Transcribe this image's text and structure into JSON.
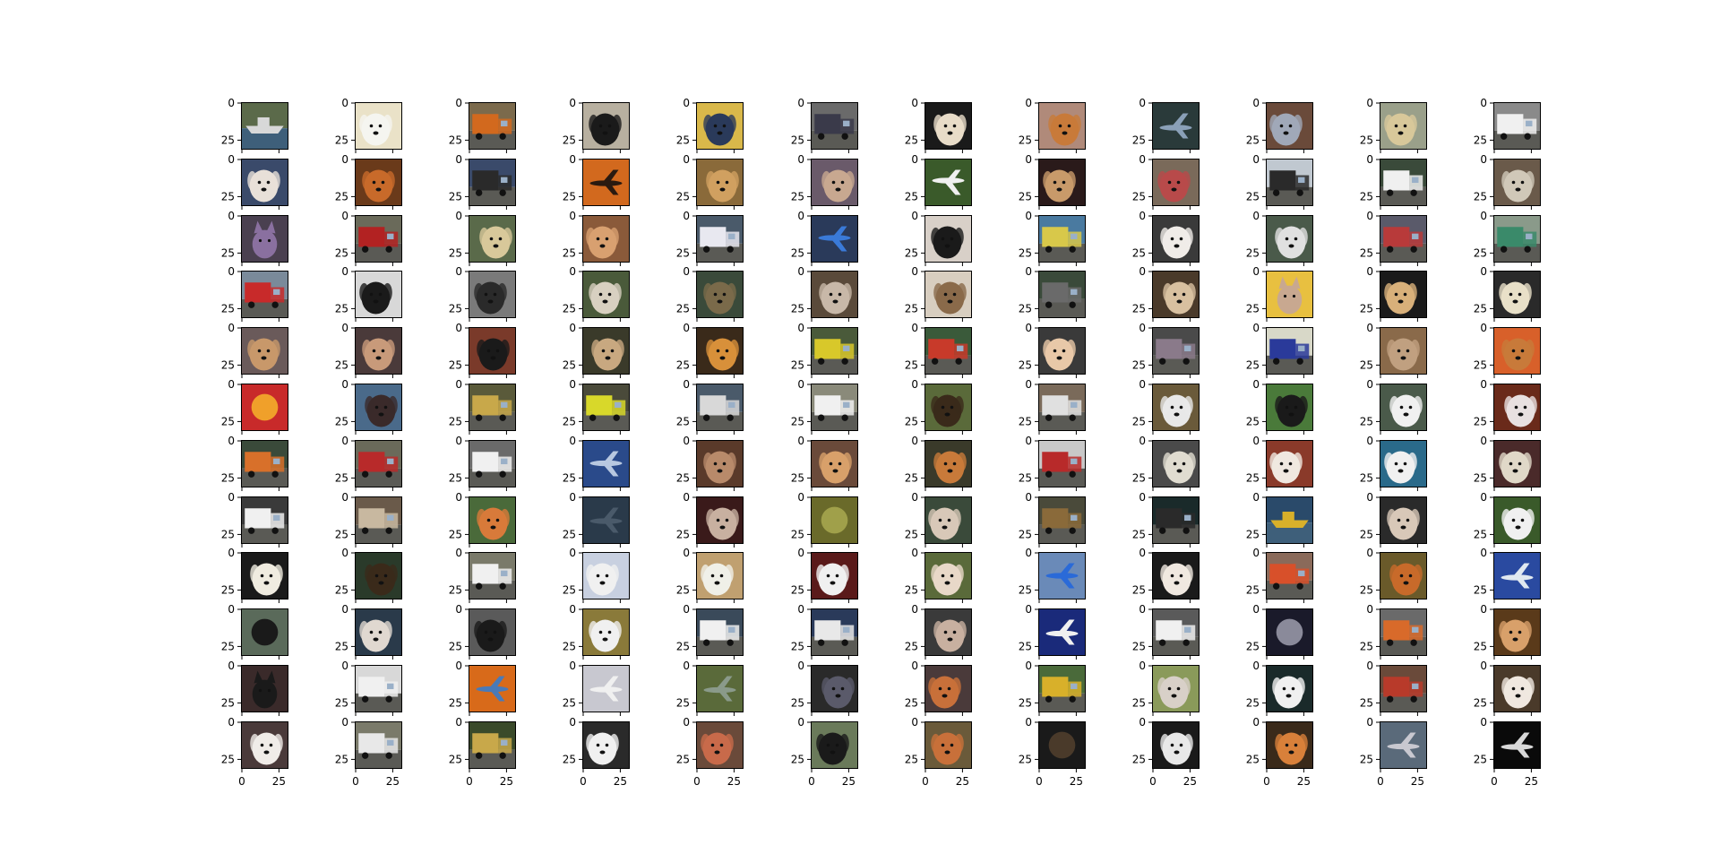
{
  "figure": {
    "background": "#ffffff",
    "grid": {
      "rows": 12,
      "cols": 12
    },
    "axis": {
      "y_tick_labels": [
        "0",
        "25"
      ],
      "x_tick_labels": [
        "0",
        "25"
      ],
      "x_ticks_shown_on_bottom_row_only": true,
      "axis_color": "#000000"
    },
    "palette_names": {
      "dark": "#2e2a26",
      "brown": "#7a4a26",
      "tan": "#c19a6b",
      "cream": "#efe6d4",
      "orange": "#d2691e",
      "green": "#4f6b3a",
      "blue": "#4a6fa5",
      "navy": "#1f2c6b",
      "gray": "#8a8a8a",
      "white": "#f2f2f2",
      "red": "#b22222",
      "yellow": "#d6c42a",
      "sky": "#9ec6e8",
      "black": "#141414"
    },
    "thumbnails": [
      [
        {
          "subject": "ship",
          "bg": "#5b6a4a",
          "fg": "#d8d8d8"
        },
        {
          "subject": "dog",
          "bg": "#eae2c8",
          "fg": "#f5f5f0"
        },
        {
          "subject": "truck",
          "bg": "#7b6a4c",
          "fg": "#d2691e"
        },
        {
          "subject": "dog",
          "bg": "#b8b0a0",
          "fg": "#1a1a1a"
        },
        {
          "subject": "dog",
          "bg": "#d9b84a",
          "fg": "#2a3a5a"
        },
        {
          "subject": "truck",
          "bg": "#6a6a6a",
          "fg": "#3a3a4a"
        },
        {
          "subject": "dog",
          "bg": "#1a1a1a",
          "fg": "#e8dcc8"
        },
        {
          "subject": "dog",
          "bg": "#b08a7a",
          "fg": "#c87a3a"
        },
        {
          "subject": "airplane",
          "bg": "#2a3a3a",
          "fg": "#8aa0b8"
        },
        {
          "subject": "dog",
          "bg": "#6a4a3a",
          "fg": "#a0a8b8"
        },
        {
          "subject": "dog",
          "bg": "#9aa08a",
          "fg": "#d8c89a"
        },
        {
          "subject": "truck",
          "bg": "#8a8a8a",
          "fg": "#f0f0f0"
        }
      ],
      [
        {
          "subject": "dog",
          "bg": "#3a4a6a",
          "fg": "#e8e0d8"
        },
        {
          "subject": "dog",
          "bg": "#6a3a1a",
          "fg": "#c86a2a"
        },
        {
          "subject": "truck",
          "bg": "#3a4a6a",
          "fg": "#2a2a2a"
        },
        {
          "subject": "airplane",
          "bg": "#d2691e",
          "fg": "#2a1a10"
        },
        {
          "subject": "dog",
          "bg": "#8a6a3a",
          "fg": "#d0a060"
        },
        {
          "subject": "dog",
          "bg": "#6a5a6a",
          "fg": "#c8a890"
        },
        {
          "subject": "airplane",
          "bg": "#3a5a2a",
          "fg": "#f0f0f0"
        },
        {
          "subject": "dog",
          "bg": "#2a1a1a",
          "fg": "#c89a6a"
        },
        {
          "subject": "dog",
          "bg": "#7a6a5a",
          "fg": "#b84a4a"
        },
        {
          "subject": "truck",
          "bg": "#c0c8d0",
          "fg": "#2a2a2a"
        },
        {
          "subject": "truck",
          "bg": "#3a4a3a",
          "fg": "#f0f0f0"
        },
        {
          "subject": "dog",
          "bg": "#6a5a4a",
          "fg": "#d0c8b8"
        }
      ],
      [
        {
          "subject": "cat",
          "bg": "#4a4050",
          "fg": "#8a70a0"
        },
        {
          "subject": "truck",
          "bg": "#6a6a5a",
          "fg": "#b22222"
        },
        {
          "subject": "dog",
          "bg": "#5a6a4a",
          "fg": "#d8c89a"
        },
        {
          "subject": "dog",
          "bg": "#8a5a3a",
          "fg": "#d8a070"
        },
        {
          "subject": "truck",
          "bg": "#4a5a6a",
          "fg": "#e8e8f0"
        },
        {
          "subject": "airplane",
          "bg": "#2a3a5a",
          "fg": "#3a7ad8"
        },
        {
          "subject": "dog",
          "bg": "#d8d0c8",
          "fg": "#1a1a1a"
        },
        {
          "subject": "truck",
          "bg": "#4a7aa0",
          "fg": "#d8c84a"
        },
        {
          "subject": "dog",
          "bg": "#3a3a3a",
          "fg": "#f0ece8"
        },
        {
          "subject": "dog",
          "bg": "#4a5a4a",
          "fg": "#e0e0e0"
        },
        {
          "subject": "truck",
          "bg": "#5a5a6a",
          "fg": "#b83a3a"
        },
        {
          "subject": "truck",
          "bg": "#8a9a8a",
          "fg": "#3a8a6a"
        }
      ],
      [
        {
          "subject": "truck",
          "bg": "#7a8a9a",
          "fg": "#c82a2a"
        },
        {
          "subject": "dog",
          "bg": "#d8d8d8",
          "fg": "#1a1a1a"
        },
        {
          "subject": "dog",
          "bg": "#7a7a7a",
          "fg": "#2a2a2a"
        },
        {
          "subject": "dog",
          "bg": "#4a5a3a",
          "fg": "#d8d0c0"
        },
        {
          "subject": "dog",
          "bg": "#3a4a3a",
          "fg": "#7a6a4a"
        },
        {
          "subject": "dog",
          "bg": "#5a4a3a",
          "fg": "#c8b8a8"
        },
        {
          "subject": "dog",
          "bg": "#d8cec0",
          "fg": "#8a6a4a"
        },
        {
          "subject": "truck",
          "bg": "#3a4a3a",
          "fg": "#6a6a6a"
        },
        {
          "subject": "dog",
          "bg": "#4a3a2a",
          "fg": "#d8c0a0"
        },
        {
          "subject": "cat",
          "bg": "#e8c040",
          "fg": "#c8a890"
        },
        {
          "subject": "dog",
          "bg": "#1a1a1a",
          "fg": "#d8b07a"
        },
        {
          "subject": "dog",
          "bg": "#2a2a2a",
          "fg": "#e8e0c8"
        }
      ],
      [
        {
          "subject": "dog",
          "bg": "#6a5a5a",
          "fg": "#c8986a"
        },
        {
          "subject": "dog",
          "bg": "#4a3a3a",
          "fg": "#c89a7a"
        },
        {
          "subject": "dog",
          "bg": "#7a3a2a",
          "fg": "#1a1a1a"
        },
        {
          "subject": "dog",
          "bg": "#3a3a2a",
          "fg": "#c8a880"
        },
        {
          "subject": "dog",
          "bg": "#3a2a1a",
          "fg": "#d8903a"
        },
        {
          "subject": "truck",
          "bg": "#4a5a3a",
          "fg": "#d8c82a"
        },
        {
          "subject": "truck",
          "bg": "#3a5a3a",
          "fg": "#c83a2a"
        },
        {
          "subject": "dog",
          "bg": "#3a3a3a",
          "fg": "#e8c8a8"
        },
        {
          "subject": "truck",
          "bg": "#4a4a4a",
          "fg": "#8a7a8a"
        },
        {
          "subject": "truck",
          "bg": "#d8d8c8",
          "fg": "#2a3a9a"
        },
        {
          "subject": "dog",
          "bg": "#8a6a4a",
          "fg": "#c0a080"
        },
        {
          "subject": "dog",
          "bg": "#d8602a",
          "fg": "#c87a3a"
        }
      ],
      [
        {
          "subject": "other",
          "bg": "#c82a2a",
          "fg": "#f0a02a"
        },
        {
          "subject": "dog",
          "bg": "#4a6a8a",
          "fg": "#3a2a2a"
        },
        {
          "subject": "truck",
          "bg": "#5a5a3a",
          "fg": "#c8a84a"
        },
        {
          "subject": "truck",
          "bg": "#4a4a3a",
          "fg": "#d8d82a"
        },
        {
          "subject": "truck",
          "bg": "#4a5a6a",
          "fg": "#d8d8d8"
        },
        {
          "subject": "truck",
          "bg": "#8a8a7a",
          "fg": "#f0f0f0"
        },
        {
          "subject": "dog",
          "bg": "#5a6a3a",
          "fg": "#3a2a1a"
        },
        {
          "subject": "truck",
          "bg": "#7a6a5a",
          "fg": "#e0e0e0"
        },
        {
          "subject": "dog",
          "bg": "#6a5a3a",
          "fg": "#e8e8e8"
        },
        {
          "subject": "dog",
          "bg": "#4a7a3a",
          "fg": "#1a1a1a"
        },
        {
          "subject": "dog",
          "bg": "#4a5a4a",
          "fg": "#f0f0f0"
        },
        {
          "subject": "dog",
          "bg": "#6a2a1a",
          "fg": "#e8e0e0"
        }
      ],
      [
        {
          "subject": "truck",
          "bg": "#3a4a3a",
          "fg": "#d8702a"
        },
        {
          "subject": "truck",
          "bg": "#6a6a5a",
          "fg": "#b82a2a"
        },
        {
          "subject": "truck",
          "bg": "#6a6a6a",
          "fg": "#f0f0f0"
        },
        {
          "subject": "airplane",
          "bg": "#2a4a8a",
          "fg": "#b8c8e0"
        },
        {
          "subject": "dog",
          "bg": "#5a3a2a",
          "fg": "#b88a6a"
        },
        {
          "subject": "dog",
          "bg": "#6a4a3a",
          "fg": "#d8a06a"
        },
        {
          "subject": "dog",
          "bg": "#3a3a2a",
          "fg": "#c87a3a"
        },
        {
          "subject": "truck",
          "bg": "#c8c8c8",
          "fg": "#b82a2a"
        },
        {
          "subject": "dog",
          "bg": "#4a4a4a",
          "fg": "#e0dcd0"
        },
        {
          "subject": "dog",
          "bg": "#8a3a2a",
          "fg": "#f0e8e0"
        },
        {
          "subject": "dog",
          "bg": "#2a6a8a",
          "fg": "#f0f0f0"
        },
        {
          "subject": "dog",
          "bg": "#4a2a2a",
          "fg": "#e0d8c8"
        }
      ],
      [
        {
          "subject": "truck",
          "bg": "#3a3a3a",
          "fg": "#f0f0f0"
        },
        {
          "subject": "truck",
          "bg": "#6a5a4a",
          "fg": "#c8b8a0"
        },
        {
          "subject": "dog",
          "bg": "#4a6a3a",
          "fg": "#d87a3a"
        },
        {
          "subject": "airplane",
          "bg": "#2a3a4a",
          "fg": "#4a5a6a"
        },
        {
          "subject": "dog",
          "bg": "#3a1a1a",
          "fg": "#c8b0a0"
        },
        {
          "subject": "other",
          "bg": "#6a6a2a",
          "fg": "#a0a04a"
        },
        {
          "subject": "dog",
          "bg": "#3a4a3a",
          "fg": "#d8c8b8"
        },
        {
          "subject": "truck",
          "bg": "#4a4a3a",
          "fg": "#8a6a3a"
        },
        {
          "subject": "truck",
          "bg": "#1a2a2a",
          "fg": "#2a2a2a"
        },
        {
          "subject": "ship",
          "bg": "#2a4a6a",
          "fg": "#d8b02a"
        },
        {
          "subject": "dog",
          "bg": "#2a2a2a",
          "fg": "#d8c8b8"
        },
        {
          "subject": "dog",
          "bg": "#3a5a2a",
          "fg": "#f0f0f0"
        }
      ],
      [
        {
          "subject": "dog",
          "bg": "#1a1a1a",
          "fg": "#f0ece0"
        },
        {
          "subject": "dog",
          "bg": "#2a3a2a",
          "fg": "#3a2a1a"
        },
        {
          "subject": "truck",
          "bg": "#7a7a6a",
          "fg": "#f0f0f0"
        },
        {
          "subject": "dog",
          "bg": "#c8d0e0",
          "fg": "#f0f0f0"
        },
        {
          "subject": "dog",
          "bg": "#c0a070",
          "fg": "#f0f0e8"
        },
        {
          "subject": "dog",
          "bg": "#5a1a1a",
          "fg": "#f0f0f0"
        },
        {
          "subject": "dog",
          "bg": "#5a6a3a",
          "fg": "#e8d8c8"
        },
        {
          "subject": "airplane",
          "bg": "#6a8ab8",
          "fg": "#2a6ad8"
        },
        {
          "subject": "dog",
          "bg": "#1a1a1a",
          "fg": "#f0e8e0"
        },
        {
          "subject": "truck",
          "bg": "#8a6a5a",
          "fg": "#d8502a"
        },
        {
          "subject": "dog",
          "bg": "#6a5a2a",
          "fg": "#c86a2a"
        },
        {
          "subject": "airplane",
          "bg": "#2a4aa0",
          "fg": "#e0e8f0"
        }
      ],
      [
        {
          "subject": "other",
          "bg": "#5a6a5a",
          "fg": "#1a1a1a"
        },
        {
          "subject": "dog",
          "bg": "#2a3a4a",
          "fg": "#e0d8d0"
        },
        {
          "subject": "dog",
          "bg": "#5a5a5a",
          "fg": "#1a1a1a"
        },
        {
          "subject": "dog",
          "bg": "#8a7a3a",
          "fg": "#f0f0f0"
        },
        {
          "subject": "truck",
          "bg": "#3a4a5a",
          "fg": "#f0f0f0"
        },
        {
          "subject": "truck",
          "bg": "#2a3a5a",
          "fg": "#e8e8e8"
        },
        {
          "subject": "dog",
          "bg": "#3a3a3a",
          "fg": "#c8b0a0"
        },
        {
          "subject": "airplane",
          "bg": "#1a2a7a",
          "fg": "#f0f0f0"
        },
        {
          "subject": "truck",
          "bg": "#5a5a5a",
          "fg": "#f0f0f0"
        },
        {
          "subject": "other",
          "bg": "#1a1a2a",
          "fg": "#8a8a9a"
        },
        {
          "subject": "truck",
          "bg": "#6a6a6a",
          "fg": "#d86a2a"
        },
        {
          "subject": "dog",
          "bg": "#5a3a1a",
          "fg": "#d8a06a"
        }
      ],
      [
        {
          "subject": "cat",
          "bg": "#3a2a2a",
          "fg": "#1a1a1a"
        },
        {
          "subject": "truck",
          "bg": "#d8d8d8",
          "fg": "#f0f0f0"
        },
        {
          "subject": "airplane",
          "bg": "#d86a1a",
          "fg": "#4a7ab8"
        },
        {
          "subject": "airplane",
          "bg": "#c8c8d0",
          "fg": "#f0f0f0"
        },
        {
          "subject": "airplane",
          "bg": "#5a6a3a",
          "fg": "#8a9a8a"
        },
        {
          "subject": "dog",
          "bg": "#2a2a2a",
          "fg": "#5a5a6a"
        },
        {
          "subject": "dog",
          "bg": "#4a3a3a",
          "fg": "#c8703a"
        },
        {
          "subject": "truck",
          "bg": "#4a6a3a",
          "fg": "#d8b02a"
        },
        {
          "subject": "dog",
          "bg": "#8a9a5a",
          "fg": "#d8d0c8"
        },
        {
          "subject": "dog",
          "bg": "#1a2a2a",
          "fg": "#f0f0f0"
        },
        {
          "subject": "truck",
          "bg": "#6a4a3a",
          "fg": "#b83a2a"
        },
        {
          "subject": "dog",
          "bg": "#4a3a2a",
          "fg": "#f0e8e0"
        }
      ],
      [
        {
          "subject": "dog",
          "bg": "#4a3a3a",
          "fg": "#f0ece8"
        },
        {
          "subject": "truck",
          "bg": "#7a7a6a",
          "fg": "#e8e8e8"
        },
        {
          "subject": "truck",
          "bg": "#3a4a2a",
          "fg": "#c8a84a"
        },
        {
          "subject": "dog",
          "bg": "#2a2a2a",
          "fg": "#f0f0f0"
        },
        {
          "subject": "dog",
          "bg": "#6a4a3a",
          "fg": "#c86a4a"
        },
        {
          "subject": "dog",
          "bg": "#6a7a5a",
          "fg": "#1a1a1a"
        },
        {
          "subject": "dog",
          "bg": "#6a5a3a",
          "fg": "#c8703a"
        },
        {
          "subject": "other",
          "bg": "#1a1a1a",
          "fg": "#4a3a2a"
        },
        {
          "subject": "dog",
          "bg": "#1a1a1a",
          "fg": "#e8e8e8"
        },
        {
          "subject": "dog",
          "bg": "#3a2a1a",
          "fg": "#d8803a"
        },
        {
          "subject": "airplane",
          "bg": "#5a6a7a",
          "fg": "#c8c8d0"
        },
        {
          "subject": "airplane",
          "bg": "#0a0a0a",
          "fg": "#d8d8d8"
        }
      ]
    ]
  }
}
